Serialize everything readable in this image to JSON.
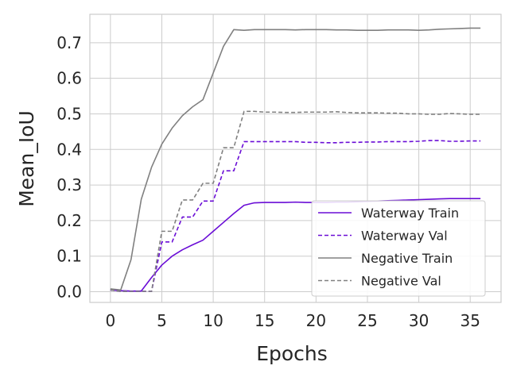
{
  "chart_data": {
    "type": "line",
    "title": "",
    "xlabel": "Epochs",
    "ylabel": "Mean_IoU",
    "xlim": [
      -2,
      38
    ],
    "ylim": [
      -0.03,
      0.78
    ],
    "xticks": [
      0,
      5,
      10,
      15,
      20,
      25,
      30,
      35
    ],
    "yticks": [
      0.0,
      0.1,
      0.2,
      0.3,
      0.4,
      0.5,
      0.6,
      0.7
    ],
    "xtick_labels": [
      "0",
      "5",
      "10",
      "15",
      "20",
      "25",
      "30",
      "35"
    ],
    "ytick_labels": [
      "0.0",
      "0.1",
      "0.2",
      "0.3",
      "0.4",
      "0.5",
      "0.6",
      "0.7"
    ],
    "grid": true,
    "legend_position": "lower-right",
    "x": [
      0,
      1,
      2,
      3,
      4,
      5,
      6,
      7,
      8,
      9,
      10,
      11,
      12,
      13,
      14,
      15,
      16,
      17,
      18,
      19,
      20,
      21,
      22,
      23,
      24,
      25,
      26,
      27,
      28,
      29,
      30,
      31,
      32,
      33,
      34,
      35,
      36
    ],
    "series": [
      {
        "name": "Waterway Train",
        "color": "#6a0dd6",
        "dash": "solid",
        "values": [
          0.005,
          0.003,
          0.002,
          0.002,
          0.04,
          0.075,
          0.1,
          0.118,
          0.132,
          0.145,
          0.17,
          0.195,
          0.22,
          0.243,
          0.25,
          0.251,
          0.251,
          0.251,
          0.252,
          0.251,
          0.251,
          0.251,
          0.252,
          0.252,
          0.253,
          0.254,
          0.255,
          0.256,
          0.257,
          0.258,
          0.259,
          0.26,
          0.261,
          0.262,
          0.262,
          0.262,
          0.262
        ]
      },
      {
        "name": "Waterway Val",
        "color": "#6a0dd6",
        "dash": "dashed",
        "values": [
          0.005,
          0.001,
          0.001,
          0.001,
          0.001,
          0.14,
          0.14,
          0.21,
          0.21,
          0.255,
          0.255,
          0.34,
          0.34,
          0.422,
          0.422,
          0.422,
          0.422,
          0.422,
          0.422,
          0.42,
          0.42,
          0.419,
          0.419,
          0.42,
          0.42,
          0.421,
          0.421,
          0.422,
          0.422,
          0.422,
          0.423,
          0.425,
          0.425,
          0.423,
          0.423,
          0.424,
          0.424
        ]
      },
      {
        "name": "Negative Train",
        "color": "#808080",
        "dash": "solid",
        "values": [
          0.008,
          0.005,
          0.09,
          0.26,
          0.35,
          0.415,
          0.46,
          0.495,
          0.52,
          0.54,
          0.615,
          0.69,
          0.737,
          0.735,
          0.737,
          0.737,
          0.737,
          0.737,
          0.736,
          0.737,
          0.737,
          0.737,
          0.736,
          0.736,
          0.735,
          0.735,
          0.735,
          0.736,
          0.736,
          0.736,
          0.735,
          0.736,
          0.738,
          0.739,
          0.74,
          0.741,
          0.741
        ]
      },
      {
        "name": "Negative Val",
        "color": "#808080",
        "dash": "dashed",
        "values": [
          0.005,
          0.001,
          0.001,
          0.001,
          0.001,
          0.17,
          0.17,
          0.258,
          0.258,
          0.305,
          0.305,
          0.405,
          0.405,
          0.507,
          0.507,
          0.505,
          0.505,
          0.504,
          0.504,
          0.505,
          0.505,
          0.505,
          0.506,
          0.504,
          0.503,
          0.503,
          0.503,
          0.502,
          0.502,
          0.5,
          0.5,
          0.499,
          0.499,
          0.501,
          0.5,
          0.499,
          0.499
        ]
      }
    ]
  }
}
